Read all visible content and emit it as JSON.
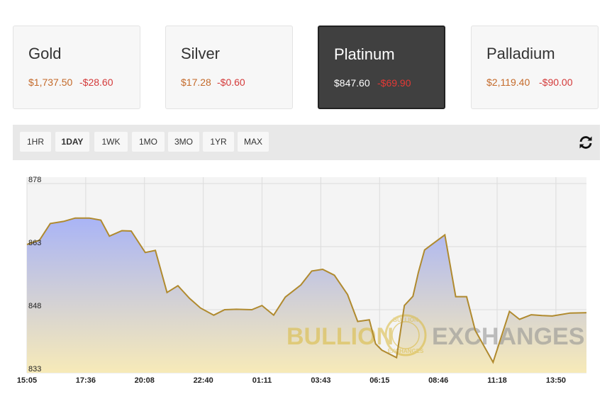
{
  "cards": [
    {
      "name": "Gold",
      "price": "$1,737.50",
      "change": "-$28.60",
      "active": false
    },
    {
      "name": "Silver",
      "price": "$17.28",
      "change": "-$0.60",
      "active": false
    },
    {
      "name": "Platinum",
      "price": "$847.60",
      "change": "-$69.90",
      "active": true
    },
    {
      "name": "Palladium",
      "price": "$2,119.40",
      "change": "-$90.00",
      "active": false
    }
  ],
  "ranges": [
    "1HR",
    "1DAY",
    "1WK",
    "1MO",
    "3MO",
    "1YR",
    "MAX"
  ],
  "active_range": "1DAY",
  "refresh_icon": "refresh-icon",
  "watermark": {
    "left": "BULLION",
    "ring_top": "BULLION",
    "ring_bottom": "EXCHANGES",
    "right": "EXCHANGES"
  },
  "colors": {
    "line": "#b08a2e",
    "fill_top": "#a9b4f6",
    "fill_bottom": "#f7eab8",
    "price": "#c46a2a",
    "change": "#d43a3a"
  },
  "chart_data": {
    "type": "area",
    "title": "",
    "xlabel": "",
    "ylabel": "",
    "ylim": [
      833,
      878
    ],
    "y_ticks": [
      833,
      848,
      863,
      878
    ],
    "x_ticks": [
      "15:05",
      "17:36",
      "20:08",
      "22:40",
      "01:11",
      "03:43",
      "06:15",
      "08:46",
      "11:18",
      "13:50"
    ],
    "x_range_minutes": [
      0,
      1440
    ],
    "grid": true,
    "series": [
      {
        "x": [
          0,
          16,
          30,
          47,
          62,
          80,
          95,
          106,
          122,
          134,
          152,
          165,
          180,
          194,
          209,
          223,
          240,
          254,
          269,
          289,
          302,
          317,
          332,
          352,
          366,
          380,
          395,
          412,
          425,
          440,
          448,
          456,
          475,
          485,
          496,
          503,
          511,
          521,
          537,
          551,
          565,
          576,
          599,
          620,
          633,
          648,
          662,
          675,
          698,
          719
        ],
        "y": [
          863.5,
          864.5,
          868.5,
          869,
          869.8,
          869.8,
          869.3,
          865.5,
          866.8,
          866.7,
          861.6,
          862.1,
          852.1,
          853.7,
          850.7,
          848.4,
          846.7,
          848,
          848.1,
          848,
          849,
          846.7,
          851,
          853.9,
          857.2,
          857.6,
          856.2,
          851.6,
          845.2,
          845.6,
          839.9,
          838.4,
          836.6,
          849,
          851.2,
          856.9,
          862.2,
          863.6,
          865.8,
          851.1,
          851.1,
          843.1,
          835.5,
          847.6,
          845.7,
          846.8,
          846.6,
          846.5,
          847.2,
          847.3
        ]
      }
    ]
  }
}
